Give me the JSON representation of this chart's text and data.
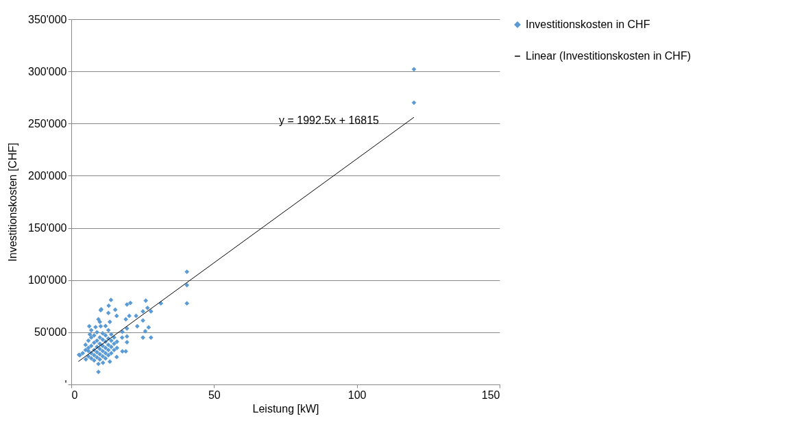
{
  "chart_data": {
    "type": "scatter",
    "xlabel": "Leistung [kW]",
    "ylabel": "Investitionskosten [CHF]",
    "xlim": [
      0,
      150
    ],
    "xticks": [
      0,
      50,
      100,
      150
    ],
    "ylim": [
      0,
      350000
    ],
    "yticks": [
      {
        "value": 0,
        "label": "'"
      },
      {
        "value": 50000,
        "label": "50'000"
      },
      {
        "value": 100000,
        "label": "100'000"
      },
      {
        "value": 150000,
        "label": "150'000"
      },
      {
        "value": 200000,
        "label": "200'000"
      },
      {
        "value": 250000,
        "label": "250'000"
      },
      {
        "value": 300000,
        "label": "300'000"
      },
      {
        "value": 350000,
        "label": "350'000"
      }
    ],
    "grid": "y",
    "legend": "right",
    "annotations": [
      "y = 1992.5x + 16815"
    ],
    "series": [
      {
        "name": "Investitionskosten in CHF",
        "color": "#5b9bd5",
        "marker": "diamond",
        "x": [
          13.9,
          10.3,
          13.1,
          15.4,
          13.0,
          15.9,
          19.5,
          20.7,
          26.1,
          31.4,
          40.5,
          40.5,
          40.5,
          26.7,
          25.1,
          27.9,
          22.7,
          20.3,
          25.1,
          23.1,
          27.1,
          25.9,
          25.1,
          27.9,
          19.1,
          19.5,
          19.5,
          19.5,
          19.1,
          17.8,
          17.9,
          9.5,
          9.5,
          11.1,
          2.7,
          5.1,
          6.3,
          9.5,
          10.3,
          15.9,
          13.5,
          17.9,
          120,
          120,
          4,
          5,
          5,
          6,
          6,
          6,
          6.5,
          7,
          7,
          7,
          7,
          7,
          8,
          8,
          8,
          8,
          8,
          8.5,
          9,
          9,
          9,
          9,
          9,
          10,
          10,
          10,
          10,
          10,
          10,
          10.5,
          11,
          11,
          11,
          11,
          11,
          12,
          12,
          12,
          12,
          12,
          12,
          13,
          13,
          13,
          13,
          13,
          13.5,
          14,
          14,
          14,
          14,
          15,
          15,
          15,
          16,
          16,
          6,
          3
        ],
        "values": [
          81000,
          71100,
          75500,
          71600,
          68500,
          65700,
          76600,
          78100,
          80300,
          77700,
          77700,
          95200,
          108000,
          73300,
          70000,
          70000,
          65700,
          65700,
          61300,
          55800,
          54700,
          51000,
          44900,
          44900,
          62400,
          53600,
          46000,
          40500,
          31700,
          44900,
          50400,
          12000,
          19700,
          20800,
          28400,
          24100,
          55800,
          62400,
          55800,
          26300,
          21900,
          31700,
          302000,
          270000,
          30000,
          33000,
          38000,
          27000,
          35000,
          42000,
          48000,
          25000,
          30000,
          37000,
          45000,
          52000,
          23000,
          28000,
          33000,
          40000,
          47000,
          55000,
          26000,
          31000,
          36000,
          42000,
          50000,
          24000,
          29000,
          34000,
          39000,
          45000,
          60000,
          72000,
          27000,
          32000,
          37000,
          43000,
          49000,
          25000,
          30000,
          35000,
          41000,
          47000,
          56000,
          28000,
          33000,
          38000,
          44000,
          52000,
          60000,
          30000,
          36000,
          42000,
          48000,
          33000,
          39000,
          45000,
          35000,
          41000,
          32000,
          28000
        ]
      },
      {
        "name": "Linear (Investitionskosten in CHF)",
        "type": "line",
        "color": "#000000",
        "marker": "none",
        "x": [
          2.5,
          120
        ],
        "values": [
          22000,
          256000
        ]
      }
    ]
  }
}
